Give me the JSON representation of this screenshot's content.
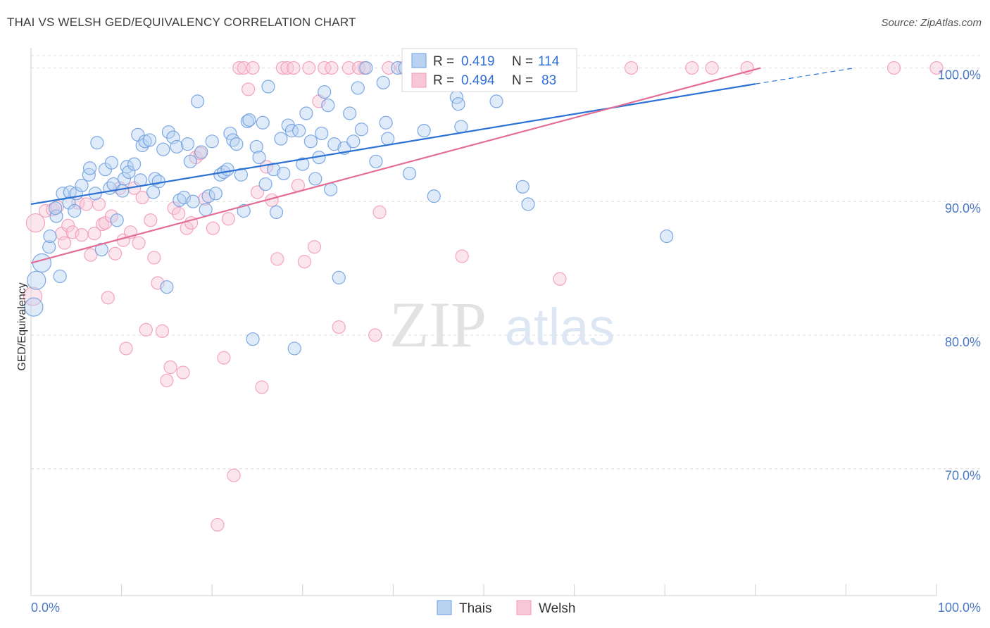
{
  "title": "THAI VS WELSH GED/EQUIVALENCY CORRELATION CHART",
  "source": "Source: ZipAtlas.com",
  "watermark": {
    "zip": "ZIP",
    "atlas": "atlas"
  },
  "colors": {
    "thai": "#6fa0e0",
    "thai_line": "#2b72d4",
    "welsh": "#f29bb8",
    "welsh_line": "#e36d95",
    "grid": "#dcdcdc",
    "tick_label": "#4a78c2"
  },
  "legend": {
    "rows": [
      {
        "r_label": "R =",
        "r_value": "0.419",
        "n_label": "N =",
        "n_value": "114"
      },
      {
        "r_label": "R =",
        "r_value": "0.494",
        "n_label": "N =",
        "n_value": "83"
      }
    ],
    "bottom": [
      "Thais",
      "Welsh"
    ]
  },
  "chart_data": {
    "type": "scatter",
    "title": "THAI VS WELSH GED/EQUIVALENCY CORRELATION CHART",
    "xlabel": "",
    "ylabel": "GED/Equivalency",
    "xlim": [
      0,
      100
    ],
    "ylim": [
      60.5,
      101.5
    ],
    "x_tick_labels": [
      "0.0%",
      "100.0%"
    ],
    "y_ticks": [
      70,
      80,
      90,
      100
    ],
    "y_tick_labels": [
      "70.0%",
      "80.0%",
      "90.0%",
      "100.0%"
    ],
    "grid": true,
    "legend_position": "top",
    "series": [
      {
        "name": "Thais",
        "R": 0.419,
        "N": 114,
        "trend": {
          "x": [
            0,
            80.0
          ],
          "y": [
            89.8,
            98.8
          ],
          "dashed_to": [
            91,
            100.0
          ]
        },
        "points": [
          [
            0.3,
            82.1
          ],
          [
            0.6,
            84.1
          ],
          [
            1.2,
            85.4
          ],
          [
            2.0,
            86.6
          ],
          [
            2.1,
            87.4
          ],
          [
            2.8,
            88.9
          ],
          [
            3.2,
            84.4
          ],
          [
            2.7,
            89.5
          ],
          [
            3.5,
            90.6
          ],
          [
            4.2,
            89.9
          ],
          [
            4.3,
            90.7
          ],
          [
            5.0,
            90.6
          ],
          [
            4.8,
            89.3
          ],
          [
            5.6,
            91.2
          ],
          [
            6.4,
            92.0
          ],
          [
            6.5,
            92.5
          ],
          [
            7.1,
            90.6
          ],
          [
            7.3,
            94.4
          ],
          [
            7.8,
            86.4
          ],
          [
            8.2,
            92.4
          ],
          [
            8.7,
            91.0
          ],
          [
            8.9,
            92.9
          ],
          [
            9.1,
            91.3
          ],
          [
            9.5,
            88.6
          ],
          [
            10.1,
            90.8
          ],
          [
            10.3,
            91.7
          ],
          [
            10.6,
            92.6
          ],
          [
            10.8,
            92.2
          ],
          [
            11.4,
            92.8
          ],
          [
            11.8,
            95.0
          ],
          [
            12.1,
            91.6
          ],
          [
            12.3,
            94.2
          ],
          [
            12.6,
            94.5
          ],
          [
            13.1,
            94.6
          ],
          [
            13.5,
            90.7
          ],
          [
            13.7,
            91.7
          ],
          [
            14.1,
            91.5
          ],
          [
            14.6,
            93.9
          ],
          [
            15.0,
            83.6
          ],
          [
            15.2,
            95.2
          ],
          [
            15.7,
            94.8
          ],
          [
            16.1,
            94.1
          ],
          [
            16.4,
            90.1
          ],
          [
            16.9,
            90.3
          ],
          [
            17.3,
            94.3
          ],
          [
            17.6,
            93.0
          ],
          [
            17.9,
            90.0
          ],
          [
            18.4,
            97.5
          ],
          [
            18.8,
            93.7
          ],
          [
            19.3,
            89.4
          ],
          [
            19.6,
            90.4
          ],
          [
            20.0,
            94.5
          ],
          [
            20.4,
            90.6
          ],
          [
            20.9,
            92.0
          ],
          [
            21.3,
            92.2
          ],
          [
            21.7,
            92.4
          ],
          [
            22.0,
            95.1
          ],
          [
            22.3,
            94.6
          ],
          [
            22.7,
            94.3
          ],
          [
            23.2,
            92.0
          ],
          [
            23.5,
            89.3
          ],
          [
            23.9,
            96.0
          ],
          [
            24.1,
            96.1
          ],
          [
            24.5,
            79.7
          ],
          [
            24.9,
            94.1
          ],
          [
            25.2,
            93.3
          ],
          [
            25.6,
            95.9
          ],
          [
            25.9,
            91.3
          ],
          [
            26.2,
            98.6
          ],
          [
            26.8,
            92.4
          ],
          [
            27.1,
            89.2
          ],
          [
            27.6,
            94.7
          ],
          [
            27.9,
            92.1
          ],
          [
            28.4,
            95.7
          ],
          [
            28.8,
            95.3
          ],
          [
            29.1,
            79.0
          ],
          [
            29.6,
            95.3
          ],
          [
            30.0,
            92.8
          ],
          [
            30.4,
            96.6
          ],
          [
            30.9,
            94.5
          ],
          [
            31.4,
            91.7
          ],
          [
            31.8,
            93.3
          ],
          [
            32.1,
            95.1
          ],
          [
            32.4,
            98.2
          ],
          [
            32.8,
            97.2
          ],
          [
            33.1,
            90.9
          ],
          [
            33.5,
            94.3
          ],
          [
            34.0,
            84.3
          ],
          [
            34.6,
            94.0
          ],
          [
            35.2,
            96.6
          ],
          [
            35.6,
            94.5
          ],
          [
            36.1,
            98.5
          ],
          [
            36.5,
            95.4
          ],
          [
            37.0,
            100.0
          ],
          [
            38.1,
            93.0
          ],
          [
            38.9,
            98.9
          ],
          [
            39.2,
            95.9
          ],
          [
            39.4,
            94.7
          ],
          [
            40.5,
            100.0
          ],
          [
            41.3,
            100.0
          ],
          [
            41.8,
            92.1
          ],
          [
            43.4,
            95.3
          ],
          [
            44.5,
            90.4
          ],
          [
            47.0,
            97.8
          ],
          [
            47.2,
            97.3
          ],
          [
            47.5,
            95.6
          ],
          [
            49.2,
            100.0
          ],
          [
            51.4,
            97.5
          ],
          [
            54.3,
            91.1
          ],
          [
            54.9,
            89.8
          ],
          [
            70.2,
            87.4
          ],
          [
            50.3,
            100.0
          ]
        ]
      },
      {
        "name": "Welsh",
        "R": 0.494,
        "N": 83,
        "trend": {
          "x": [
            0,
            80.6
          ],
          "y": [
            85.4,
            100.0
          ]
        },
        "points": [
          [
            0.2,
            82.9
          ],
          [
            0.5,
            88.4
          ],
          [
            1.6,
            89.3
          ],
          [
            2.4,
            89.4
          ],
          [
            2.9,
            89.6
          ],
          [
            3.4,
            87.6
          ],
          [
            3.7,
            86.9
          ],
          [
            4.1,
            88.2
          ],
          [
            4.6,
            87.7
          ],
          [
            5.2,
            89.9
          ],
          [
            5.6,
            87.5
          ],
          [
            6.1,
            89.8
          ],
          [
            6.6,
            86.0
          ],
          [
            7.0,
            87.6
          ],
          [
            7.5,
            89.8
          ],
          [
            7.9,
            88.3
          ],
          [
            8.2,
            88.4
          ],
          [
            8.5,
            82.8
          ],
          [
            8.9,
            88.9
          ],
          [
            9.3,
            86.1
          ],
          [
            9.8,
            91.0
          ],
          [
            10.2,
            87.1
          ],
          [
            10.5,
            79.0
          ],
          [
            11.0,
            87.7
          ],
          [
            11.4,
            91.0
          ],
          [
            11.9,
            86.9
          ],
          [
            12.3,
            90.3
          ],
          [
            12.7,
            80.4
          ],
          [
            13.2,
            88.6
          ],
          [
            13.6,
            85.8
          ],
          [
            14.0,
            83.9
          ],
          [
            14.5,
            80.3
          ],
          [
            15.0,
            76.6
          ],
          [
            15.4,
            77.6
          ],
          [
            15.8,
            89.5
          ],
          [
            16.3,
            89.1
          ],
          [
            16.8,
            77.2
          ],
          [
            17.2,
            88.0
          ],
          [
            17.7,
            88.4
          ],
          [
            18.2,
            93.3
          ],
          [
            18.7,
            93.6
          ],
          [
            19.2,
            90.2
          ],
          [
            20.1,
            88.0
          ],
          [
            20.6,
            65.8
          ],
          [
            21.3,
            78.3
          ],
          [
            21.8,
            88.7
          ],
          [
            22.4,
            69.5
          ],
          [
            23.0,
            100.0
          ],
          [
            23.5,
            100.0
          ],
          [
            24.0,
            98.4
          ],
          [
            24.5,
            100.0
          ],
          [
            25.0,
            90.7
          ],
          [
            25.5,
            76.1
          ],
          [
            26.0,
            92.6
          ],
          [
            26.6,
            90.1
          ],
          [
            27.2,
            85.7
          ],
          [
            27.8,
            100.0
          ],
          [
            28.3,
            100.0
          ],
          [
            29.0,
            100.0
          ],
          [
            29.5,
            91.2
          ],
          [
            30.2,
            85.5
          ],
          [
            30.7,
            100.0
          ],
          [
            31.3,
            86.6
          ],
          [
            31.8,
            97.5
          ],
          [
            32.4,
            100.0
          ],
          [
            33.2,
            100.0
          ],
          [
            34.0,
            80.6
          ],
          [
            35.1,
            100.0
          ],
          [
            36.2,
            100.0
          ],
          [
            36.8,
            100.0
          ],
          [
            38.0,
            80.0
          ],
          [
            38.5,
            89.2
          ],
          [
            39.5,
            100.0
          ],
          [
            41.0,
            100.0
          ],
          [
            44.4,
            100.0
          ],
          [
            47.6,
            85.9
          ],
          [
            58.4,
            84.2
          ],
          [
            66.3,
            100.0
          ],
          [
            73.0,
            100.0
          ],
          [
            75.2,
            100.0
          ],
          [
            79.1,
            100.0
          ],
          [
            95.3,
            100.0
          ],
          [
            100.0,
            100.0
          ]
        ]
      }
    ]
  }
}
